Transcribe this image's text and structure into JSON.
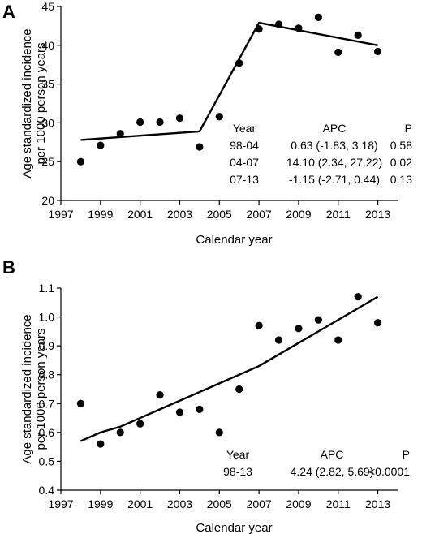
{
  "chart_data": [
    {
      "panel": "A",
      "type": "scatter",
      "xlabel": "Calendar year",
      "ylabel_lines": [
        "Age standardized incidence",
        "per 1000 person years"
      ],
      "xlim": [
        1997,
        2014
      ],
      "ylim": [
        20,
        45
      ],
      "x_ticks": [
        1997,
        1999,
        2001,
        2003,
        2005,
        2007,
        2009,
        2011,
        2013
      ],
      "x_tick_labels": [
        "1997",
        "1999",
        "2001",
        "2003",
        "2005",
        "2007",
        "2009",
        "2011",
        "2013"
      ],
      "y_ticks": [
        20,
        25,
        30,
        35,
        40,
        45
      ],
      "y_tick_labels": [
        "20",
        "25",
        "30",
        "35",
        "40",
        "45"
      ],
      "points": {
        "x": [
          1998,
          1999,
          2000,
          2001,
          2002,
          2003,
          2004,
          2005,
          2006,
          2007,
          2008,
          2009,
          2010,
          2011,
          2012,
          2013
        ],
        "y": [
          25.0,
          27.1,
          28.6,
          30.1,
          30.1,
          30.6,
          26.9,
          30.8,
          37.7,
          42.1,
          42.7,
          42.2,
          43.6,
          39.1,
          41.3,
          39.2
        ]
      },
      "trend_line": {
        "x": [
          1998,
          2004,
          2007,
          2013
        ],
        "y": [
          27.8,
          28.9,
          42.9,
          40.0
        ]
      },
      "table": {
        "headers": [
          "Year",
          "APC",
          "P"
        ],
        "rows": [
          [
            "98-04",
            "0.63 (-1.83, 3.18)",
            "0.58"
          ],
          [
            "04-07",
            "14.10 (2.34, 27.22)",
            "0.02"
          ],
          [
            "07-13",
            "-1.15 (-2.71, 0.44)",
            "0.13"
          ]
        ]
      },
      "grid": false,
      "colors": {
        "points": "#000000",
        "line": "#000000"
      }
    },
    {
      "panel": "B",
      "type": "scatter",
      "xlabel": "Calendar year",
      "ylabel_lines": [
        "Age standardized incidence",
        "per 1000 person years"
      ],
      "xlim": [
        1997,
        2014
      ],
      "ylim": [
        0.4,
        1.1
      ],
      "x_ticks": [
        1997,
        1999,
        2001,
        2003,
        2005,
        2007,
        2009,
        2011,
        2013
      ],
      "x_tick_labels": [
        "1997",
        "1999",
        "2001",
        "2003",
        "2005",
        "2007",
        "2009",
        "2011",
        "2013"
      ],
      "y_ticks": [
        0.4,
        0.5,
        0.6,
        0.7,
        0.8,
        0.9,
        1.0,
        1.1
      ],
      "y_tick_labels": [
        "0.4",
        "0.5",
        "0.6",
        "0.7",
        "0.8",
        "0.9",
        "1.0",
        "1.1"
      ],
      "points": {
        "x": [
          1998,
          1999,
          2000,
          2001,
          2002,
          2003,
          2004,
          2005,
          2006,
          2007,
          2008,
          2009,
          2010,
          2011,
          2012,
          2013
        ],
        "y": [
          0.7,
          0.56,
          0.6,
          0.63,
          0.73,
          0.67,
          0.68,
          0.6,
          0.75,
          0.97,
          0.92,
          0.96,
          0.99,
          0.92,
          1.07,
          0.98
        ]
      },
      "trend_line": {
        "x": [
          1998,
          1999,
          2000,
          2001,
          2002,
          2003,
          2004,
          2005,
          2006,
          2007,
          2008,
          2009,
          2010,
          2011,
          2012,
          2013
        ],
        "y": [
          0.57,
          0.6,
          0.62,
          0.65,
          0.68,
          0.71,
          0.74,
          0.77,
          0.8,
          0.83,
          0.87,
          0.91,
          0.95,
          0.99,
          1.03,
          1.07
        ]
      },
      "table": {
        "headers": [
          "Year",
          "APC",
          "P"
        ],
        "rows": [
          [
            "98-13",
            "4.24 (2.82, 5.69)",
            "<0.0001"
          ]
        ]
      },
      "grid": false,
      "colors": {
        "points": "#000000",
        "line": "#000000"
      }
    }
  ]
}
